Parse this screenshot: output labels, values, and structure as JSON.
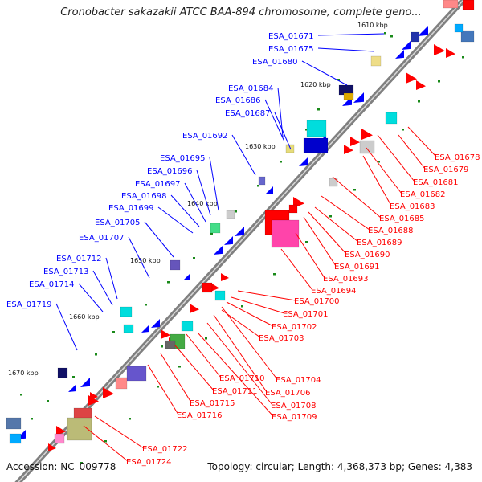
{
  "map": {
    "title": "Cronobacter sakazakii ATCC BAA-894 chromosome, complete geno...",
    "accession": "Accession: NC_009778",
    "summary": "Topology: circular; Length: 4,368,373 bp; Genes: 4,383",
    "kbp_ticks": [
      "1610 kbp",
      "1620 kbp",
      "1630 kbp",
      "1640 kbp",
      "1650 kbp",
      "1660 kbp",
      "1670 kbp"
    ],
    "left_genes": [
      "ESA_01671",
      "ESA_01675",
      "ESA_01680",
      "ESA_01684",
      "ESA_01686",
      "ESA_01687",
      "ESA_01692",
      "ESA_01695",
      "ESA_01696",
      "ESA_01697",
      "ESA_01698",
      "ESA_01699",
      "ESA_01705",
      "ESA_01707",
      "ESA_01712",
      "ESA_01713",
      "ESA_01714",
      "ESA_01719"
    ],
    "right_genes": [
      "ESA_01678",
      "ESA_01679",
      "ESA_01681",
      "ESA_01682",
      "ESA_01683",
      "ESA_01685",
      "ESA_01688",
      "ESA_01689",
      "ESA_01690",
      "ESA_01691",
      "ESA_01693",
      "ESA_01694",
      "ESA_01700",
      "ESA_01701",
      "ESA_01702",
      "ESA_01703",
      "ESA_01704",
      "ESA_01706",
      "ESA_01708",
      "ESA_01709",
      "ESA_01710",
      "ESA_01711",
      "ESA_01715",
      "ESA_01716",
      "ESA_01722",
      "ESA_01724"
    ],
    "colors": {
      "forward_strand": "#0000ff",
      "reverse_strand": "#ff0000",
      "backbone": "#808080",
      "gc_tick": "#1a8a1a"
    }
  }
}
